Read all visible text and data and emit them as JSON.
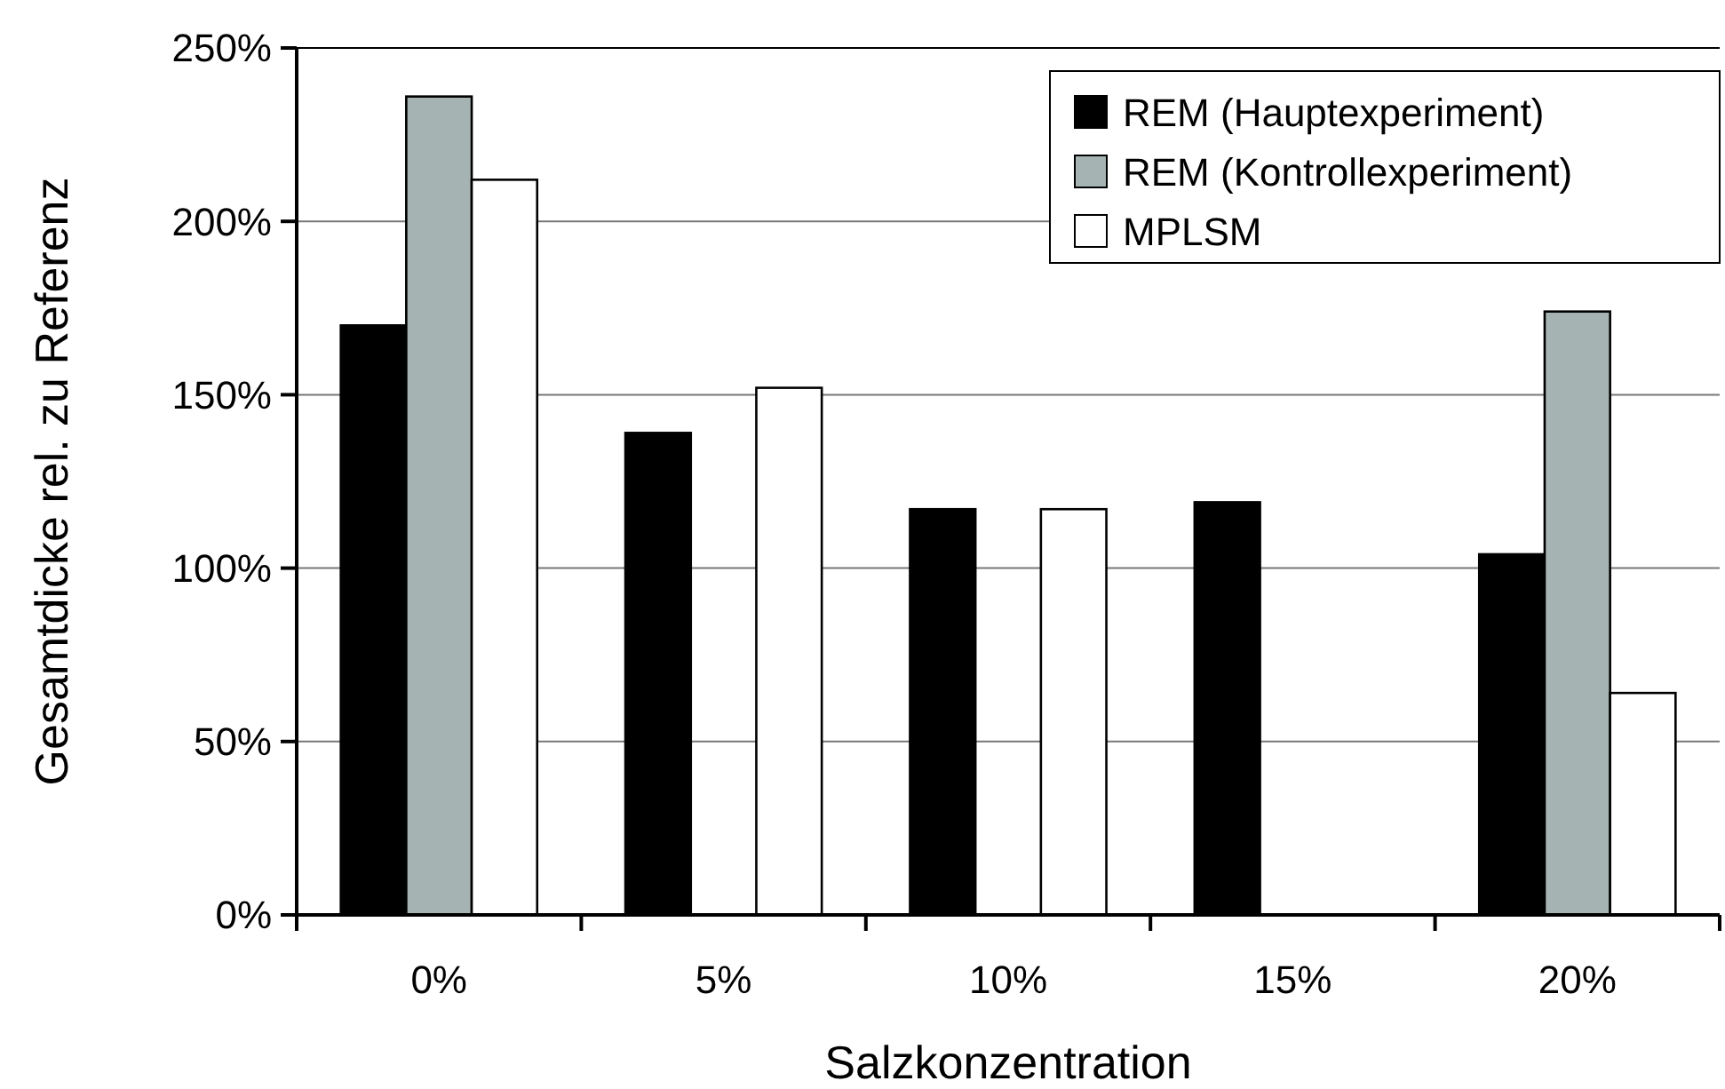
{
  "chart_data": {
    "type": "bar",
    "xlabel": "Salzkonzentration",
    "ylabel": "Gesamtdicke rel. zu Referenz",
    "categories": [
      "0%",
      "5%",
      "10%",
      "15%",
      "20%"
    ],
    "series": [
      {
        "name": "REM (Hauptexperiment)",
        "color": "#000000",
        "values": [
          170,
          139,
          117,
          119,
          104
        ]
      },
      {
        "name": "REM (Kontrollexperiment)",
        "color": "#a5b4b2",
        "values": [
          236,
          null,
          null,
          null,
          174
        ]
      },
      {
        "name": "MPLSM",
        "color": "#ffffff",
        "values": [
          212,
          152,
          117,
          null,
          64
        ]
      }
    ],
    "ylim": [
      0,
      250
    ],
    "yticks": [
      {
        "value": 0,
        "label": "0%"
      },
      {
        "value": 50,
        "label": "50%"
      },
      {
        "value": 100,
        "label": "100%"
      },
      {
        "value": 150,
        "label": "150%"
      },
      {
        "value": 200,
        "label": "200%"
      },
      {
        "value": 250,
        "label": "250%"
      }
    ],
    "grid": "y",
    "legend": "top right"
  }
}
